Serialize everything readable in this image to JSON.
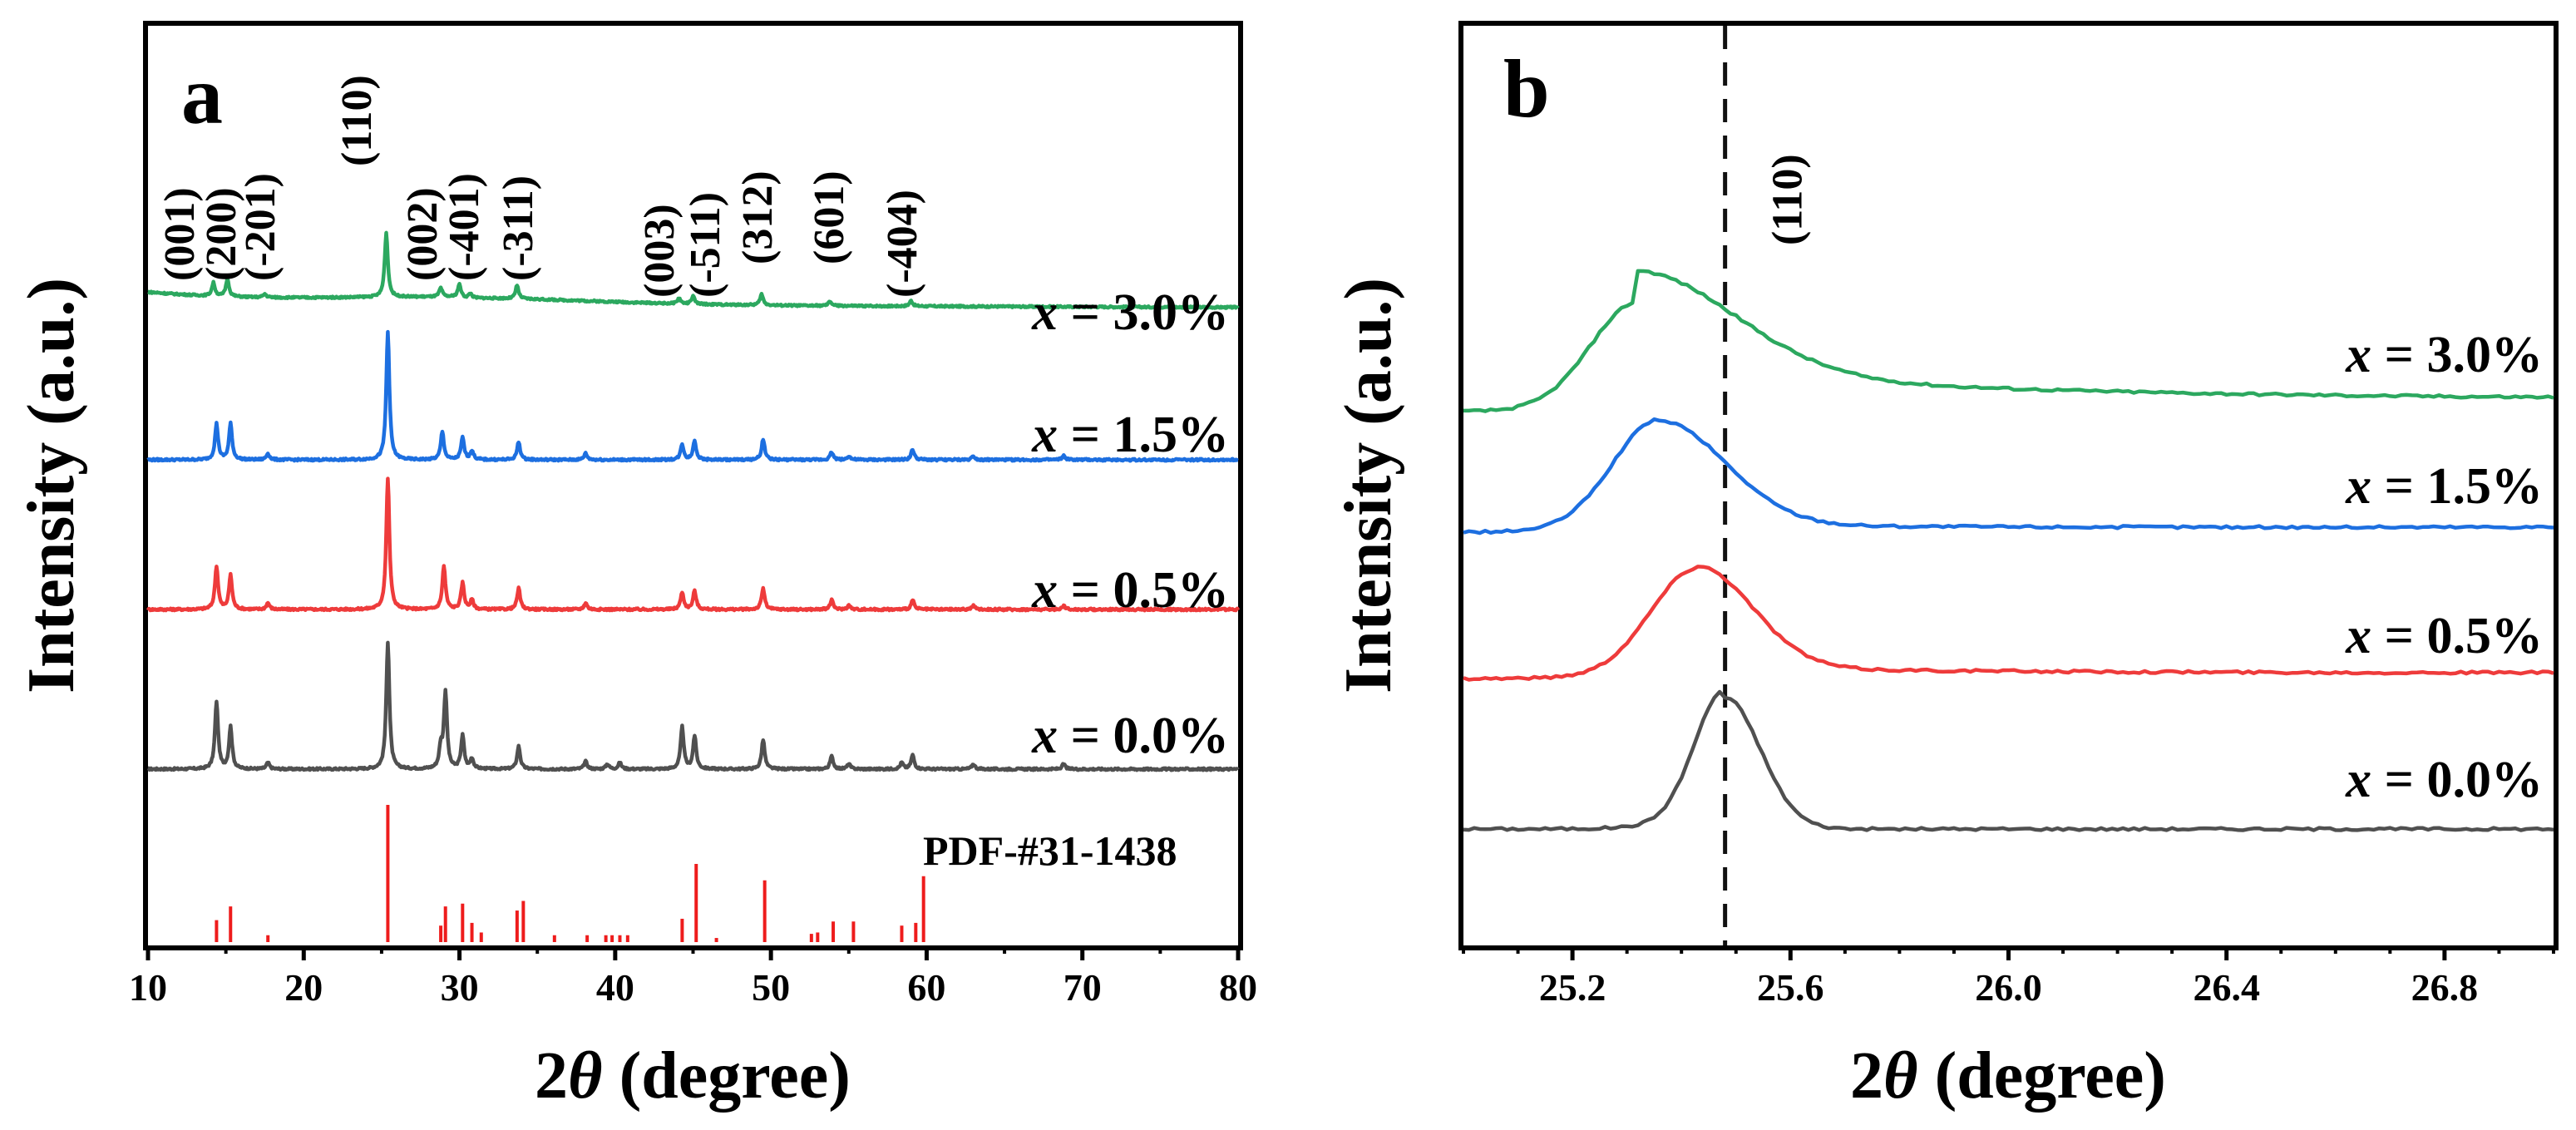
{
  "chart_data": [
    {
      "panel": "a",
      "type": "line",
      "xlabel": "2θ (degree)",
      "xlabel_prefix": "2",
      "xlabel_theta": "θ",
      "xlabel_suffix": " (degree)",
      "ylabel": "Intensity (a.u.)",
      "xlim": [
        10,
        80
      ],
      "x_ticks": [
        10,
        20,
        30,
        40,
        50,
        60,
        70,
        80
      ],
      "y_ticks_shown": false,
      "series": [
        {
          "name": "x = 0.0%",
          "label_var": "x",
          "label_rest": " = 0.0%",
          "color": "#505050",
          "peaks": [
            [
              14.4,
              53
            ],
            [
              15.3,
              33
            ],
            [
              17.7,
              5
            ],
            [
              25.4,
              100
            ],
            [
              28.8,
              16
            ],
            [
              29.1,
              60
            ],
            [
              30.2,
              26
            ],
            [
              30.8,
              8
            ],
            [
              33.8,
              18
            ],
            [
              38.1,
              6
            ],
            [
              39.5,
              4
            ],
            [
              40.3,
              5
            ],
            [
              44.3,
              33
            ],
            [
              45.1,
              26
            ],
            [
              49.5,
              23
            ],
            [
              53.9,
              10
            ],
            [
              55.0,
              4
            ],
            [
              58.4,
              5
            ],
            [
              59.1,
              11
            ],
            [
              63.0,
              4
            ],
            [
              68.8,
              4
            ]
          ]
        },
        {
          "name": "x = 0.5%",
          "label_var": "x",
          "label_rest": " = 0.5%",
          "color": "#ee3b3b",
          "peaks": [
            [
              14.4,
              33
            ],
            [
              15.3,
              26
            ],
            [
              17.7,
              5
            ],
            [
              25.4,
              100
            ],
            [
              29.0,
              33
            ],
            [
              30.2,
              20
            ],
            [
              30.8,
              7
            ],
            [
              33.8,
              16
            ],
            [
              38.1,
              5
            ],
            [
              44.3,
              13
            ],
            [
              45.1,
              14
            ],
            [
              49.5,
              16
            ],
            [
              53.9,
              7
            ],
            [
              55.0,
              3
            ],
            [
              59.1,
              7
            ],
            [
              63.0,
              3
            ],
            [
              68.8,
              3
            ]
          ]
        },
        {
          "name": "x = 1.5%",
          "label_var": "x",
          "label_rest": " = 1.5%",
          "color": "#1d6fe0",
          "peaks": [
            [
              14.4,
              28
            ],
            [
              15.3,
              28
            ],
            [
              17.7,
              5
            ],
            [
              25.4,
              100
            ],
            [
              28.9,
              22
            ],
            [
              30.2,
              17
            ],
            [
              30.8,
              7
            ],
            [
              33.8,
              14
            ],
            [
              38.1,
              5
            ],
            [
              44.3,
              12
            ],
            [
              45.1,
              15
            ],
            [
              49.5,
              16
            ],
            [
              53.9,
              6
            ],
            [
              55.0,
              3
            ],
            [
              59.1,
              8
            ],
            [
              63.0,
              3
            ],
            [
              68.8,
              3
            ]
          ]
        },
        {
          "name": "x = 3.0%",
          "label_var": "x",
          "label_rest": " = 3.0%",
          "color": "#2ca85f",
          "peaks": [
            [
              14.2,
              12
            ],
            [
              15.1,
              16
            ],
            [
              17.5,
              3
            ],
            [
              25.3,
              58
            ],
            [
              28.8,
              8
            ],
            [
              30.0,
              12
            ],
            [
              30.7,
              4
            ],
            [
              33.7,
              12
            ],
            [
              44.1,
              5
            ],
            [
              45.0,
              7
            ],
            [
              49.4,
              10
            ],
            [
              53.8,
              4
            ],
            [
              59.0,
              5
            ]
          ]
        }
      ],
      "reference": {
        "name": "PDF-#31-1438",
        "color": "#ee1c1c",
        "lines": [
          [
            14.4,
            16
          ],
          [
            15.3,
            26
          ],
          [
            17.7,
            5
          ],
          [
            25.4,
            100
          ],
          [
            28.8,
            12
          ],
          [
            29.1,
            26
          ],
          [
            30.2,
            28
          ],
          [
            30.8,
            14
          ],
          [
            31.4,
            7
          ],
          [
            33.7,
            23
          ],
          [
            34.1,
            30
          ],
          [
            36.1,
            5
          ],
          [
            38.2,
            5
          ],
          [
            39.4,
            5
          ],
          [
            39.8,
            5
          ],
          [
            40.3,
            5
          ],
          [
            40.8,
            5
          ],
          [
            44.3,
            17
          ],
          [
            45.2,
            57
          ],
          [
            46.5,
            3
          ],
          [
            49.6,
            45
          ],
          [
            52.6,
            6
          ],
          [
            53.0,
            7
          ],
          [
            54.0,
            15
          ],
          [
            55.3,
            15
          ],
          [
            58.4,
            12
          ],
          [
            59.3,
            14
          ],
          [
            59.8,
            48
          ]
        ]
      },
      "peak_labels": [
        {
          "text": "(001)",
          "x": 14.4
        },
        {
          "text": "(200)",
          "x": 15.3
        },
        {
          "text": "(-201)",
          "x": 17.7
        },
        {
          "text": "(110)",
          "x": 25.4
        },
        {
          "text": "(002)",
          "x": 28.8
        },
        {
          "text": "(-401)",
          "x": 30.2
        },
        {
          "text": "(-311)",
          "x": 33.8
        },
        {
          "text": "(003)",
          "x": 44.3
        },
        {
          "text": "(-511)",
          "x": 45.8
        },
        {
          "text": "(312)",
          "x": 49.5
        },
        {
          "text": "(601)",
          "x": 53.9
        },
        {
          "text": "(-404)",
          "x": 59.1
        }
      ]
    },
    {
      "panel": "b",
      "type": "line",
      "xlabel": "2θ (degree)",
      "xlabel_prefix": "2",
      "xlabel_theta": "θ",
      "xlabel_suffix": " (degree)",
      "ylabel": "Intensity (a.u.)",
      "xlim": [
        25.0,
        27.0
      ],
      "x_ticks": [
        25.2,
        25.6,
        26.0,
        26.4,
        26.8
      ],
      "x_tick_labels": [
        "25.2",
        "25.6",
        "26.0",
        "26.4",
        "26.8"
      ],
      "y_ticks_shown": false,
      "reference_line": {
        "x": 25.48,
        "label": "(110)",
        "style": "dashed"
      },
      "series": [
        {
          "name": "x = 0.0%",
          "label_var": "x",
          "label_rest": " = 0.0%",
          "color": "#505050",
          "peak_center": 25.48,
          "peak_height": 158,
          "baseline": 0,
          "tail": 0
        },
        {
          "name": "x = 0.5%",
          "label_var": "x",
          "label_rest": " = 0.5%",
          "color": "#ee3b3b",
          "peak_center": 25.43,
          "peak_height": 122,
          "baseline": 0,
          "tail": 0
        },
        {
          "name": "x = 1.5%",
          "label_var": "x",
          "label_rest": " = 1.5%",
          "color": "#1d6fe0",
          "peak_center": 25.36,
          "peak_height": 125,
          "baseline": 0,
          "tail": 0
        },
        {
          "name": "x = 3.0%",
          "label_var": "x",
          "label_rest": " = 3.0%",
          "color": "#2ca85f",
          "peak_center": 25.32,
          "peak_height": 120,
          "baseline": 0,
          "tail": 0
        }
      ]
    }
  ]
}
